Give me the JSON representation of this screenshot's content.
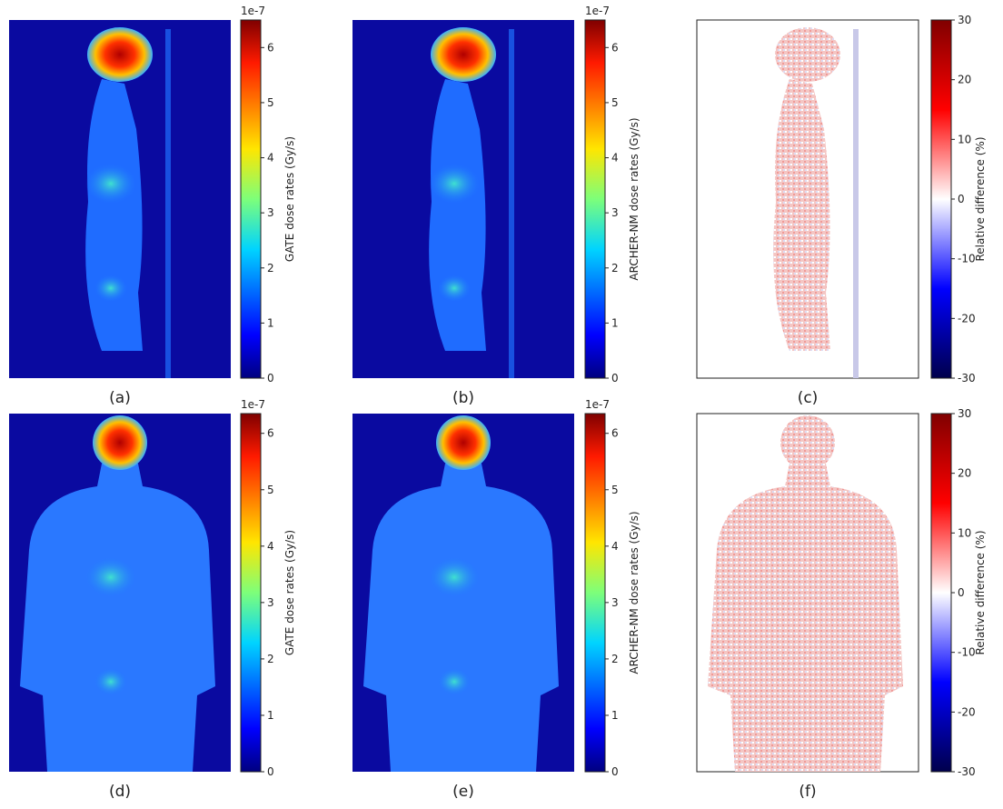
{
  "panels": [
    {
      "label": "(a)",
      "colorbar": {
        "label": "GATE dose rates (Gy/s)",
        "offset": "1e-7",
        "cmap": "jet",
        "lim": [
          0,
          6.5
        ],
        "ticks": [
          0,
          1,
          2,
          3,
          4,
          5,
          6
        ]
      }
    },
    {
      "label": "(b)",
      "colorbar": {
        "label": "ARCHER-NM dose rates (Gy/s)",
        "offset": "1e-7",
        "cmap": "jet",
        "lim": [
          0,
          6.5
        ],
        "ticks": [
          0,
          1,
          2,
          3,
          4,
          5,
          6
        ]
      }
    },
    {
      "label": "(c)",
      "colorbar": {
        "label": "Relative difference (%)",
        "cmap": "seismic",
        "lim": [
          -30,
          30
        ],
        "ticks": [
          -30,
          -20,
          -10,
          0,
          10,
          20,
          30
        ]
      }
    },
    {
      "label": "(d)",
      "colorbar": {
        "label": "GATE dose rates (Gy/s)",
        "offset": "1e-7",
        "cmap": "jet",
        "lim": [
          0,
          6.35
        ],
        "ticks": [
          0,
          1,
          2,
          3,
          4,
          5,
          6
        ]
      }
    },
    {
      "label": "(e)",
      "colorbar": {
        "label": "ARCHER-NM dose rates (Gy/s)",
        "offset": "1e-7",
        "cmap": "jet",
        "lim": [
          0,
          6.35
        ],
        "ticks": [
          0,
          1,
          2,
          3,
          4,
          5,
          6
        ]
      }
    },
    {
      "label": "(f)",
      "colorbar": {
        "label": "Relative difference (%)",
        "cmap": "seismic",
        "lim": [
          -30,
          30
        ],
        "ticks": [
          -30,
          -20,
          -10,
          0,
          10,
          20,
          30
        ]
      }
    }
  ]
}
